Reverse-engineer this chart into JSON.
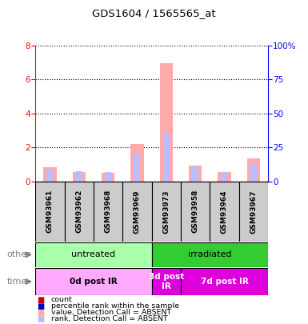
{
  "title": "GDS1604 / 1565565_at",
  "samples": [
    "GSM93961",
    "GSM93962",
    "GSM93968",
    "GSM93969",
    "GSM93973",
    "GSM93958",
    "GSM93964",
    "GSM93967"
  ],
  "value_absent": [
    0.85,
    0.55,
    0.5,
    2.2,
    6.95,
    0.95,
    0.55,
    1.35
  ],
  "rank_absent_scaled": [
    8.75,
    7.5,
    7.0,
    20.6,
    35.6,
    11.25,
    7.0,
    13.1
  ],
  "ylim_left": [
    0,
    8
  ],
  "ylim_right": [
    0,
    100
  ],
  "yticks_left": [
    0,
    2,
    4,
    6,
    8
  ],
  "yticks_right": [
    0,
    25,
    50,
    75,
    100
  ],
  "ytick_labels_right": [
    "0",
    "25",
    "50",
    "75",
    "100%"
  ],
  "value_absent_color": "#ffaaaa",
  "rank_absent_color": "#bbbbff",
  "count_color": "#cc0000",
  "rank_color": "#0000cc",
  "group_other": [
    {
      "label": "untreated",
      "start": 0,
      "end": 4,
      "color": "#aaffaa"
    },
    {
      "label": "irradiated",
      "start": 4,
      "end": 8,
      "color": "#33cc33"
    }
  ],
  "group_time": [
    {
      "label": "0d post IR",
      "start": 0,
      "end": 4,
      "color": "#ffaaff"
    },
    {
      "label": "3d post\nIR",
      "start": 4,
      "end": 5,
      "color": "#dd00dd"
    },
    {
      "label": "7d post IR",
      "start": 5,
      "end": 8,
      "color": "#dd00dd"
    }
  ],
  "bg_color": "#ffffff",
  "sample_box_color": "#cccccc",
  "legend_items": [
    {
      "label": "count",
      "color": "#cc0000"
    },
    {
      "label": "percentile rank within the sample",
      "color": "#0000cc"
    },
    {
      "label": "value, Detection Call = ABSENT",
      "color": "#ffaaaa"
    },
    {
      "label": "rank, Detection Call = ABSENT",
      "color": "#bbbbff"
    }
  ]
}
